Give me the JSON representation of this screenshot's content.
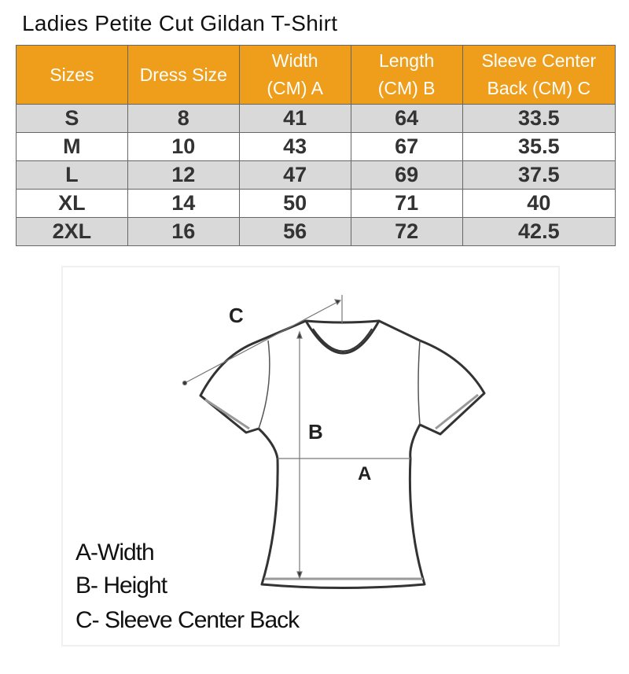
{
  "title": "Ladies Petite Cut Gildan T-Shirt",
  "colors": {
    "header": "#ee9e1b",
    "row_alt": "#d9d9d9"
  },
  "table": {
    "headers": [
      "Sizes",
      "Dress Size",
      "Width\n(CM) A",
      "Length\n(CM) B",
      "Sleeve Center\nBack (CM) C"
    ],
    "rows": [
      [
        "S",
        "8",
        "41",
        "64",
        "33.5"
      ],
      [
        "M",
        "10",
        "43",
        "67",
        "35.5"
      ],
      [
        "L",
        "12",
        "47",
        "69",
        "37.5"
      ],
      [
        "XL",
        "14",
        "50",
        "71",
        "40"
      ],
      [
        "2XL",
        "16",
        "56",
        "72",
        "42.5"
      ]
    ]
  },
  "diagram": {
    "labels": {
      "a": "A",
      "b": "B",
      "c": "C"
    },
    "legend": [
      "A-Width",
      "B- Height",
      "C- Sleeve Center Back"
    ]
  }
}
